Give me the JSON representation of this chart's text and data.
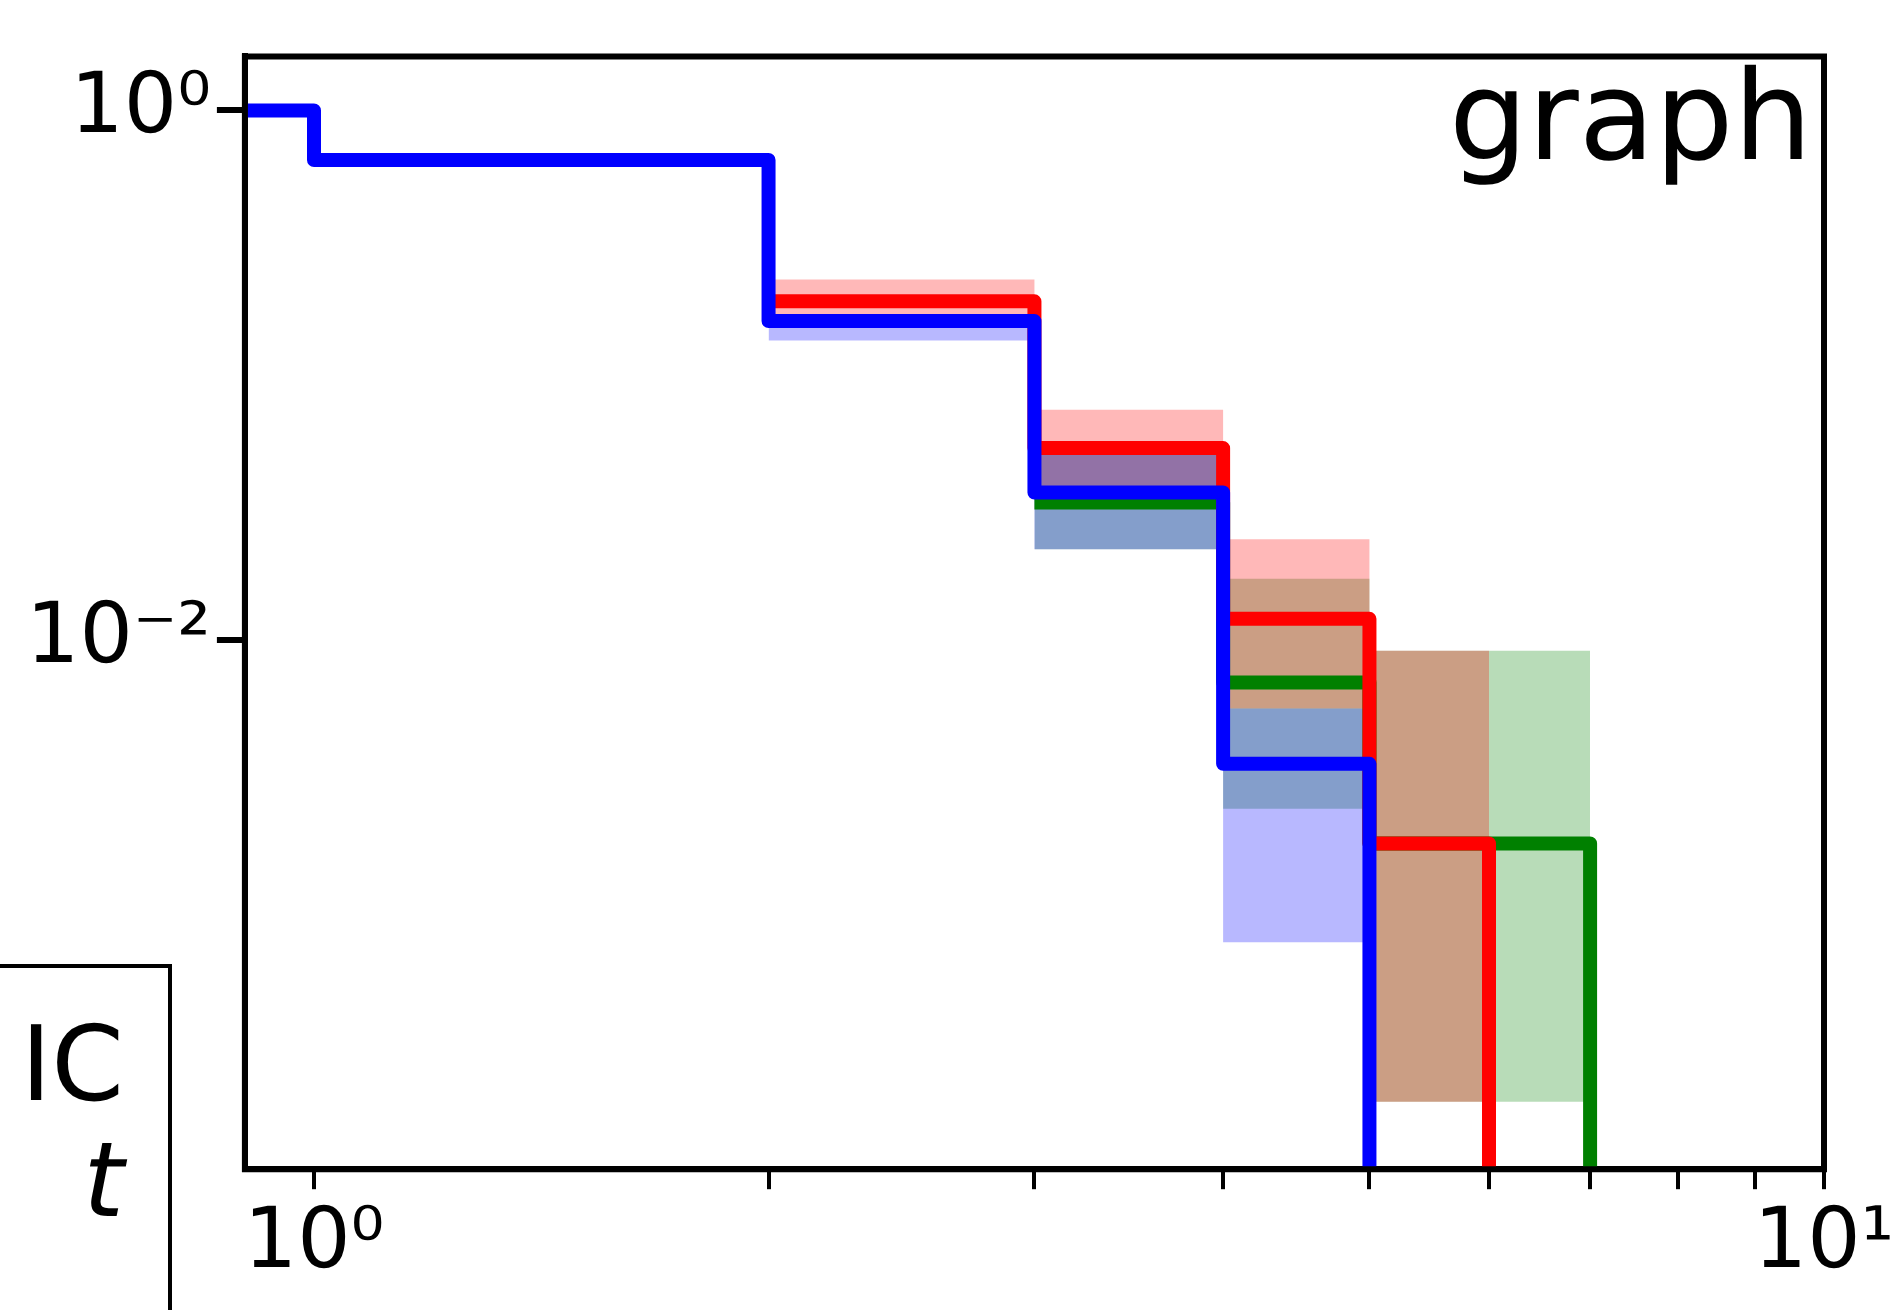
{
  "chart_data": {
    "type": "step",
    "annotations": [
      "graph",
      "IC",
      "t"
    ],
    "series": [
      {
        "color": "#008000",
        "x": [
          3,
          4,
          5,
          6,
          7
        ],
        "values": [
          0.033,
          0.0069,
          0.0017,
          0.0017,
          0.0001
        ],
        "lower": [
          0.022,
          0.0023,
          0.00018,
          0.00018,
          0.00018
        ],
        "upper": [
          0.05,
          0.017,
          0.0091,
          0.0091,
          0.0091
        ]
      },
      {
        "color": "#ff0000",
        "x": [
          2,
          3,
          4,
          5,
          6
        ],
        "values": [
          0.19,
          0.053,
          0.012,
          0.0017,
          0.0001
        ],
        "lower": [
          0.17,
          0.037,
          0.0055,
          0.00018,
          0.00018
        ],
        "upper": [
          0.23,
          0.074,
          0.024,
          0.0091,
          0.0091
        ]
      },
      {
        "color": "#0000ff",
        "x": [
          0.9,
          1,
          2,
          3,
          4,
          5
        ],
        "values": [
          1,
          0.65,
          0.16,
          0.036,
          0.0034,
          0.0001
        ],
        "lower": [
          null,
          null,
          0.135,
          0.022,
          0.00072,
          0.00072
        ],
        "upper": [
          null,
          null,
          0.17,
          0.05,
          0.0055,
          0.0055
        ]
      }
    ],
    "log": "xy",
    "xlim": [
      0.9,
      10
    ],
    "xticks": [
      {
        "value": 1,
        "label": "10⁰"
      },
      {
        "value": 2,
        "label": null
      },
      {
        "value": 3,
        "label": null
      },
      {
        "value": 4,
        "label": null
      },
      {
        "value": 5,
        "label": null
      },
      {
        "value": 6,
        "label": null
      },
      {
        "value": 7,
        "label": null
      },
      {
        "value": 8,
        "label": null
      },
      {
        "value": 9,
        "label": null
      },
      {
        "value": 10,
        "label": "10¹"
      }
    ],
    "ylim": [
      0.0001,
      1.6
    ],
    "yticks": [
      {
        "value": 1,
        "label": "10⁰"
      },
      {
        "value": 0.01,
        "label": "10⁻²"
      }
    ],
    "grid": false,
    "legend": false,
    "marker": "none",
    "line_style": "solid"
  }
}
